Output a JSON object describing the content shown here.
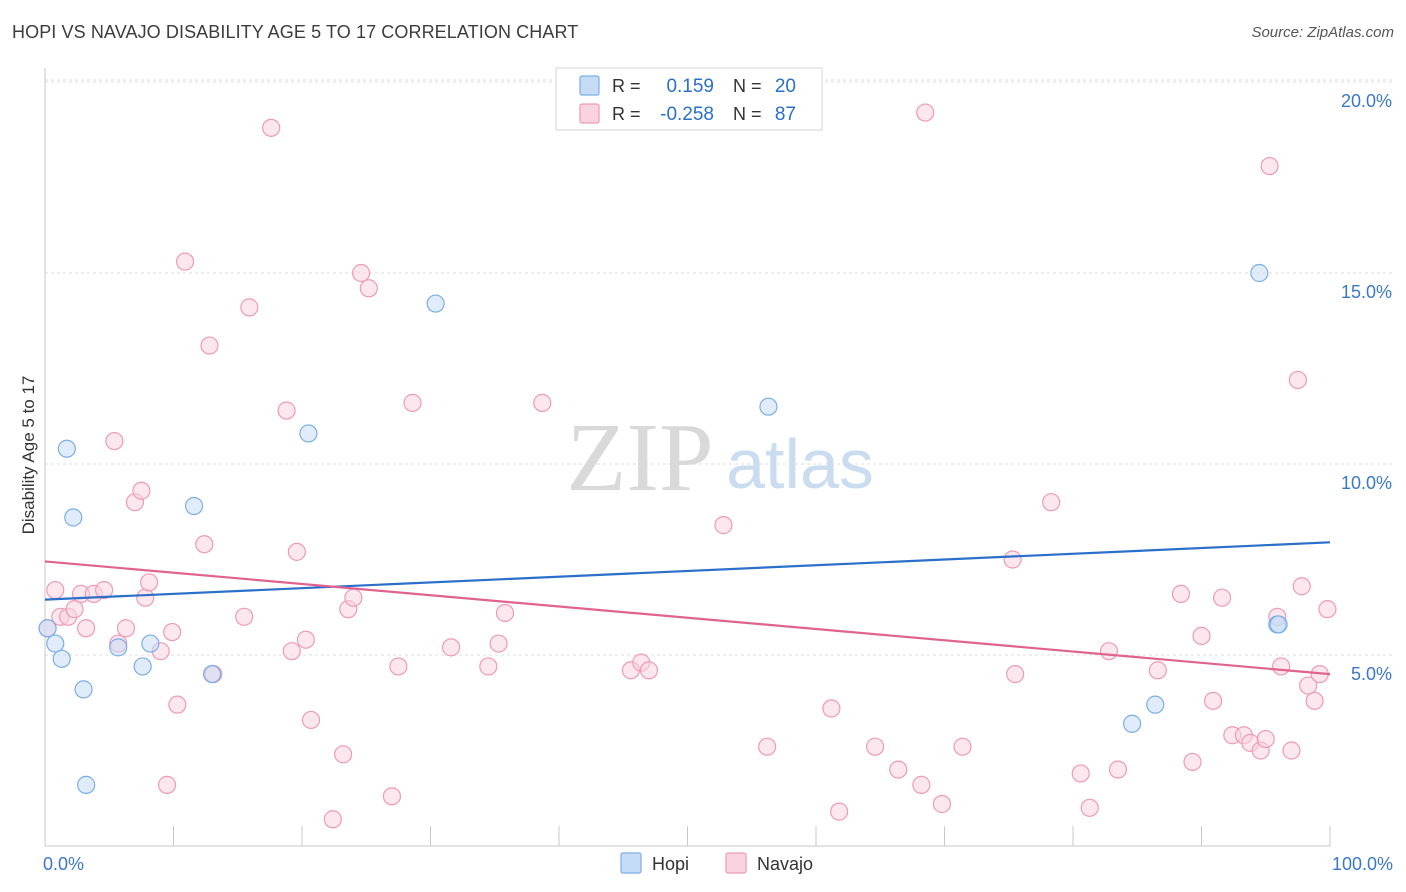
{
  "chart_data": {
    "type": "scatter",
    "title": "HOPI VS NAVAJO DISABILITY AGE 5 TO 17 CORRELATION CHART",
    "source": "Source: ZipAtlas.com",
    "xlabel": "",
    "ylabel": "Disability Age 5 to 17",
    "xlim": [
      0,
      100
    ],
    "ylim": [
      0,
      20
    ],
    "x_tick_labels": [
      "0.0%",
      "100.0%"
    ],
    "y_ticks": [
      {
        "value": 5,
        "label": "5.0%"
      },
      {
        "value": 10,
        "label": "10.0%"
      },
      {
        "value": 15,
        "label": "15.0%"
      },
      {
        "value": 20,
        "label": "20.0%"
      }
    ],
    "watermark": {
      "zip": "ZIP",
      "atlas": "atlas"
    },
    "legend_stats": [
      {
        "r_label": "R =",
        "r_value": "0.159",
        "n_label": "N =",
        "n_value": "20"
      },
      {
        "r_label": "R =",
        "r_value": "-0.258",
        "n_label": "N =",
        "n_value": "87"
      }
    ],
    "series": [
      {
        "name": "Hopi",
        "color": "#7baee8",
        "fill": "#c6dcf6",
        "line_color": "#2a6fc9",
        "trend": {
          "x": [
            0,
            100
          ],
          "y": [
            6.45,
            7.95
          ]
        },
        "points": [
          [
            0.8,
            5.3
          ],
          [
            1.3,
            4.9
          ],
          [
            1.7,
            10.4
          ],
          [
            2.2,
            8.6
          ],
          [
            3.0,
            4.1
          ],
          [
            3.2,
            1.6
          ],
          [
            5.7,
            5.2
          ],
          [
            7.6,
            4.7
          ],
          [
            8.2,
            5.3
          ],
          [
            11.6,
            8.9
          ],
          [
            13.0,
            4.5
          ],
          [
            20.5,
            10.8
          ],
          [
            30.4,
            14.2
          ],
          [
            56.3,
            11.5
          ],
          [
            84.6,
            3.2
          ],
          [
            86.4,
            3.7
          ],
          [
            94.5,
            15.0
          ],
          [
            95.9,
            5.8
          ],
          [
            96.0,
            5.8
          ],
          [
            0.2,
            5.7
          ]
        ]
      },
      {
        "name": "Navajo",
        "color": "#ef9ab6",
        "fill": "#f9d3e0",
        "line_color": "#e0628f",
        "trend": {
          "x": [
            0,
            100
          ],
          "y": [
            7.45,
            4.5
          ]
        },
        "points": [
          [
            0.2,
            5.7
          ],
          [
            0.8,
            6.7
          ],
          [
            1.2,
            6.0
          ],
          [
            1.8,
            6.0
          ],
          [
            2.3,
            6.2
          ],
          [
            2.8,
            6.6
          ],
          [
            3.2,
            5.7
          ],
          [
            3.8,
            6.6
          ],
          [
            4.6,
            6.7
          ],
          [
            5.4,
            10.6
          ],
          [
            5.7,
            5.3
          ],
          [
            6.3,
            5.7
          ],
          [
            7.0,
            9.0
          ],
          [
            7.5,
            9.3
          ],
          [
            7.8,
            6.5
          ],
          [
            8.1,
            6.9
          ],
          [
            9.0,
            5.1
          ],
          [
            9.5,
            1.6
          ],
          [
            9.9,
            5.6
          ],
          [
            10.3,
            3.7
          ],
          [
            10.9,
            15.3
          ],
          [
            12.4,
            7.9
          ],
          [
            12.8,
            13.1
          ],
          [
            13.1,
            4.5
          ],
          [
            15.5,
            6.0
          ],
          [
            15.9,
            14.1
          ],
          [
            17.6,
            18.8
          ],
          [
            18.8,
            11.4
          ],
          [
            19.2,
            5.1
          ],
          [
            19.6,
            7.7
          ],
          [
            20.3,
            5.4
          ],
          [
            20.7,
            3.3
          ],
          [
            22.4,
            0.7
          ],
          [
            23.6,
            6.2
          ],
          [
            23.2,
            2.4
          ],
          [
            24.6,
            15.0
          ],
          [
            25.2,
            14.6
          ],
          [
            24.0,
            6.5
          ],
          [
            27.0,
            1.3
          ],
          [
            27.5,
            4.7
          ],
          [
            28.6,
            11.6
          ],
          [
            31.6,
            5.2
          ],
          [
            34.5,
            4.7
          ],
          [
            35.3,
            5.3
          ],
          [
            35.8,
            6.1
          ],
          [
            38.7,
            11.6
          ],
          [
            45.6,
            4.6
          ],
          [
            46.4,
            4.8
          ],
          [
            47.0,
            4.6
          ],
          [
            52.8,
            8.4
          ],
          [
            56.2,
            2.6
          ],
          [
            61.2,
            3.6
          ],
          [
            61.8,
            0.9
          ],
          [
            64.6,
            2.6
          ],
          [
            66.4,
            2.0
          ],
          [
            68.2,
            1.6
          ],
          [
            68.5,
            19.2
          ],
          [
            69.8,
            1.1
          ],
          [
            71.4,
            2.6
          ],
          [
            75.3,
            7.5
          ],
          [
            75.5,
            4.5
          ],
          [
            78.3,
            9.0
          ],
          [
            80.6,
            1.9
          ],
          [
            81.3,
            1.0
          ],
          [
            82.8,
            5.1
          ],
          [
            83.5,
            2.0
          ],
          [
            86.6,
            4.6
          ],
          [
            88.4,
            6.6
          ],
          [
            89.3,
            2.2
          ],
          [
            90.0,
            5.5
          ],
          [
            90.9,
            3.8
          ],
          [
            91.6,
            6.5
          ],
          [
            92.4,
            2.9
          ],
          [
            93.3,
            2.9
          ],
          [
            93.8,
            2.7
          ],
          [
            94.6,
            2.5
          ],
          [
            95.0,
            2.8
          ],
          [
            95.3,
            17.8
          ],
          [
            95.9,
            6.0
          ],
          [
            96.2,
            4.7
          ],
          [
            97.0,
            2.5
          ],
          [
            97.5,
            12.2
          ],
          [
            97.8,
            6.8
          ],
          [
            98.3,
            4.2
          ],
          [
            98.8,
            3.8
          ],
          [
            99.2,
            4.5
          ],
          [
            99.8,
            6.2
          ]
        ]
      }
    ]
  }
}
